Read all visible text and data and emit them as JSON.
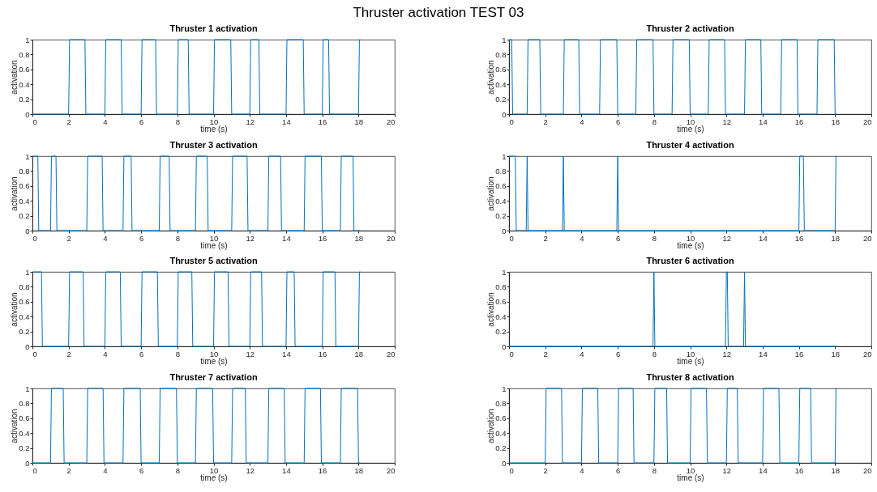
{
  "chart_data": [
    {
      "type": "line",
      "title": "Thruster 1 activation",
      "annotations": [
        "Thruster activation TEST 03"
      ],
      "xlabel": "time (s)",
      "ylabel": "activation",
      "xlim": [
        0,
        20
      ],
      "xticks": [
        0,
        2,
        4,
        6,
        8,
        10,
        12,
        14,
        16,
        18,
        20
      ],
      "ylim": [
        0,
        1
      ],
      "yticks": [
        0,
        0.2,
        0.4,
        0.6,
        0.8,
        1
      ],
      "series": [
        {
          "color": "#0072bd",
          "x": [
            0,
            2,
            2.05,
            2.9,
            2.95,
            4,
            4.05,
            4.9,
            4.95,
            6,
            6.05,
            6.8,
            6.85,
            8,
            8.05,
            8.6,
            8.65,
            10,
            10.05,
            10.95,
            11,
            12,
            12.05,
            12.5,
            12.55,
            14,
            14.05,
            14.95,
            15,
            16,
            16.05,
            16.35,
            16.4,
            18,
            18.05,
            18.1
          ],
          "values": [
            0,
            0,
            1,
            1,
            0,
            0,
            1,
            1,
            0,
            0,
            1,
            1,
            0,
            0,
            1,
            1,
            0,
            0,
            1,
            1,
            0,
            0,
            1,
            1,
            0,
            0,
            1,
            1,
            0,
            0,
            1,
            1,
            0,
            0,
            1,
            1
          ]
        }
      ]
    },
    {
      "type": "line",
      "title": "Thruster 2 activation",
      "xlabel": "time (s)",
      "ylabel": "activation",
      "xlim": [
        0,
        20
      ],
      "xticks": [
        0,
        2,
        4,
        6,
        8,
        10,
        12,
        14,
        16,
        18,
        20
      ],
      "ylim": [
        0,
        1
      ],
      "yticks": [
        0,
        0.2,
        0.4,
        0.6,
        0.8,
        1
      ],
      "series": [
        {
          "color": "#0072bd",
          "x": [
            0,
            0.15,
            0.2,
            1,
            1.05,
            1.7,
            1.75,
            3,
            3.05,
            3.85,
            3.9,
            5,
            5.05,
            5.95,
            6,
            7,
            7.05,
            7.95,
            8,
            9,
            9.05,
            9.95,
            10,
            11,
            11.05,
            11.9,
            11.95,
            13,
            13.05,
            13.9,
            13.95,
            15,
            15.05,
            15.9,
            15.95,
            17,
            17.05,
            17.95,
            18,
            18.1
          ],
          "values": [
            1,
            1,
            0,
            0,
            1,
            1,
            0,
            0,
            1,
            1,
            0,
            0,
            1,
            1,
            0,
            0,
            1,
            1,
            0,
            0,
            1,
            1,
            0,
            0,
            1,
            1,
            0,
            0,
            1,
            1,
            0,
            0,
            1,
            1,
            0,
            0,
            1,
            1,
            0,
            0
          ]
        }
      ]
    },
    {
      "type": "line",
      "title": "Thruster 3 activation",
      "xlabel": "time (s)",
      "ylabel": "activation",
      "xlim": [
        0,
        20
      ],
      "xticks": [
        0,
        2,
        4,
        6,
        8,
        10,
        12,
        14,
        16,
        18,
        20
      ],
      "ylim": [
        0,
        1
      ],
      "yticks": [
        0,
        0.2,
        0.4,
        0.6,
        0.8,
        1
      ],
      "series": [
        {
          "color": "#0072bd",
          "x": [
            0,
            0.3,
            0.35,
            1,
            1.05,
            1.3,
            1.35,
            3,
            3.05,
            3.85,
            3.9,
            5,
            5.05,
            5.45,
            5.5,
            7,
            7.05,
            7.55,
            7.6,
            9,
            9.05,
            9.65,
            9.7,
            11,
            11.05,
            11.85,
            11.9,
            13,
            13.05,
            13.7,
            13.75,
            15,
            15.05,
            15.95,
            16,
            17,
            17.05,
            17.7,
            17.75,
            18.1
          ],
          "values": [
            1,
            1,
            0,
            0,
            1,
            1,
            0,
            0,
            1,
            1,
            0,
            0,
            1,
            1,
            0,
            0,
            1,
            1,
            0,
            0,
            1,
            1,
            0,
            0,
            1,
            1,
            0,
            0,
            1,
            1,
            0,
            0,
            1,
            1,
            0,
            0,
            1,
            1,
            0,
            0
          ]
        }
      ]
    },
    {
      "type": "line",
      "title": "Thruster 4 activation",
      "xlabel": "time (s)",
      "ylabel": "activation",
      "xlim": [
        0,
        20
      ],
      "xticks": [
        0,
        2,
        4,
        6,
        8,
        10,
        12,
        14,
        16,
        18,
        20
      ],
      "ylim": [
        0,
        1
      ],
      "yticks": [
        0,
        0.2,
        0.4,
        0.6,
        0.8,
        1
      ],
      "series": [
        {
          "color": "#0072bd",
          "x": [
            0,
            0.35,
            0.4,
            0.95,
            1,
            1.05,
            2.95,
            3,
            3.05,
            5.95,
            6,
            6.05,
            16,
            16.05,
            16.25,
            16.3,
            18,
            18.05,
            18.1
          ],
          "values": [
            1,
            1,
            0,
            0,
            1,
            0,
            0,
            1,
            0,
            0,
            1,
            0,
            0,
            1,
            1,
            0,
            0,
            1,
            1
          ]
        }
      ]
    },
    {
      "type": "line",
      "title": "Thruster 5 activation",
      "xlabel": "time (s)",
      "ylabel": "activation",
      "xlim": [
        0,
        20
      ],
      "xticks": [
        0,
        2,
        4,
        6,
        8,
        10,
        12,
        14,
        16,
        18,
        20
      ],
      "ylim": [
        0,
        1
      ],
      "yticks": [
        0,
        0.2,
        0.4,
        0.6,
        0.8,
        1
      ],
      "series": [
        {
          "color": "#0072bd",
          "x": [
            0,
            0.5,
            0.55,
            2,
            2.05,
            2.8,
            2.85,
            4,
            4.05,
            4.85,
            4.9,
            6,
            6.05,
            6.9,
            6.95,
            8,
            8.05,
            8.8,
            8.85,
            10,
            10.05,
            10.8,
            10.85,
            12,
            12.05,
            12.65,
            12.7,
            14,
            14.05,
            14.45,
            14.5,
            16,
            16.05,
            16.7,
            16.75,
            18,
            18.05,
            18.1
          ],
          "values": [
            1,
            1,
            0,
            0,
            1,
            1,
            0,
            0,
            1,
            1,
            0,
            0,
            1,
            1,
            0,
            0,
            1,
            1,
            0,
            0,
            1,
            1,
            0,
            0,
            1,
            1,
            0,
            0,
            1,
            1,
            0,
            0,
            1,
            1,
            0,
            0,
            1,
            1
          ]
        }
      ]
    },
    {
      "type": "line",
      "title": "Thruster 6 activation",
      "xlabel": "time (s)",
      "ylabel": "activation",
      "xlim": [
        0,
        20
      ],
      "xticks": [
        0,
        2,
        4,
        6,
        8,
        10,
        12,
        14,
        16,
        18,
        20
      ],
      "ylim": [
        0,
        1
      ],
      "yticks": [
        0,
        0.2,
        0.4,
        0.6,
        0.8,
        1
      ],
      "series": [
        {
          "color": "#0072bd",
          "x": [
            0,
            7.95,
            8,
            8.05,
            11.95,
            12,
            12.05,
            12.1,
            12.95,
            13,
            13.05,
            18.1
          ],
          "values": [
            0,
            0,
            1,
            0,
            0,
            1,
            1,
            0,
            0,
            1,
            0,
            0
          ]
        }
      ]
    },
    {
      "type": "line",
      "title": "Thruster 7 activation",
      "xlabel": "time (s)",
      "ylabel": "activation",
      "xlim": [
        0,
        20
      ],
      "xticks": [
        0,
        2,
        4,
        6,
        8,
        10,
        12,
        14,
        16,
        18,
        20
      ],
      "ylim": [
        0,
        1
      ],
      "yticks": [
        0,
        0.2,
        0.4,
        0.6,
        0.8,
        1
      ],
      "series": [
        {
          "color": "#0072bd",
          "x": [
            0,
            1,
            1.05,
            1.7,
            1.75,
            3,
            3.05,
            3.9,
            3.95,
            5,
            5.05,
            5.95,
            6,
            7,
            7.05,
            7.95,
            8,
            9,
            9.05,
            9.95,
            10,
            11,
            11.05,
            11.75,
            11.8,
            13,
            13.05,
            13.9,
            13.95,
            15,
            15.05,
            15.9,
            15.95,
            17,
            17.05,
            17.95,
            18,
            18.1
          ],
          "values": [
            0,
            0,
            1,
            1,
            0,
            0,
            1,
            1,
            0,
            0,
            1,
            1,
            0,
            0,
            1,
            1,
            0,
            0,
            1,
            1,
            0,
            0,
            1,
            1,
            0,
            0,
            1,
            1,
            0,
            0,
            1,
            1,
            0,
            0,
            1,
            1,
            0,
            0
          ]
        }
      ]
    },
    {
      "type": "line",
      "title": "Thruster 8 activation",
      "xlabel": "time (s)",
      "ylabel": "activation",
      "xlim": [
        0,
        20
      ],
      "xticks": [
        0,
        2,
        4,
        6,
        8,
        10,
        12,
        14,
        16,
        18,
        20
      ],
      "ylim": [
        0,
        1
      ],
      "yticks": [
        0,
        0.2,
        0.4,
        0.6,
        0.8,
        1
      ],
      "series": [
        {
          "color": "#0072bd",
          "x": [
            0,
            2,
            2.05,
            2.9,
            2.95,
            4,
            4.05,
            4.9,
            4.95,
            6,
            6.05,
            6.85,
            6.9,
            8,
            8.05,
            8.7,
            8.75,
            10,
            10.05,
            10.9,
            10.95,
            12,
            12.05,
            12.6,
            12.65,
            14,
            14.05,
            14.9,
            14.95,
            16,
            16.05,
            16.65,
            16.7,
            18,
            18.05,
            18.1
          ],
          "values": [
            0,
            0,
            1,
            1,
            0,
            0,
            1,
            1,
            0,
            0,
            1,
            1,
            0,
            0,
            1,
            1,
            0,
            0,
            1,
            1,
            0,
            0,
            1,
            1,
            0,
            0,
            1,
            1,
            0,
            0,
            1,
            1,
            0,
            0,
            1,
            1
          ]
        }
      ]
    }
  ]
}
